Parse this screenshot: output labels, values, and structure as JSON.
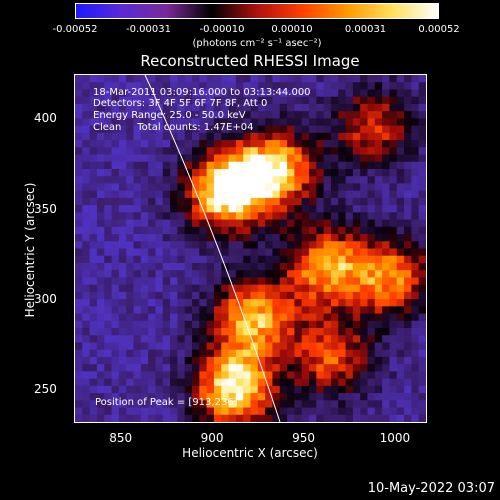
{
  "chart_data": {
    "type": "heatmap",
    "title": "Reconstructed RHESSI Image",
    "xlabel": "Heliocentric X (arcsec)",
    "ylabel": "Heliocentric Y (arcsec)",
    "xlim": [
      825,
      1017
    ],
    "ylim": [
      232,
      424
    ],
    "x_ticks": [
      "850",
      "900",
      "950",
      "1000"
    ],
    "y_ticks": [
      "250",
      "300",
      "350",
      "400"
    ],
    "colorbar": {
      "tick_labels": [
        "-0.00052",
        "-0.00031",
        "-0.00010",
        "0.00010",
        "0.00031",
        "0.00052"
      ],
      "unit": "(photons cm⁻² s⁻¹ asec⁻²)",
      "range": [
        -0.00052,
        0.00052
      ],
      "colors": [
        "#1b1bff",
        "#5a2ad6",
        "#7a2a9a",
        "#000000",
        "#b01010",
        "#ff4000",
        "#ff9a00",
        "#ffe060",
        "#ffffff"
      ]
    },
    "annotations": [
      "18-Mar-2011 03:09:16.000 to 03:13:44.000",
      "Detectors: 3F 4F 5F 6F 7F 8F, Att 0",
      "Energy Range: 25.0 - 50.0 keV",
      "Clean     Total counts: 1.47E+04"
    ],
    "peak_label": "Position of Peak = [913,236]",
    "peak_position": [
      913,
      236
    ],
    "sources": [
      {
        "x": 907,
        "y": 360,
        "peak": 1.0
      },
      {
        "x": 935,
        "y": 372,
        "peak": 0.85
      },
      {
        "x": 962,
        "y": 318,
        "peak": 0.75
      },
      {
        "x": 998,
        "y": 312,
        "peak": 0.7
      },
      {
        "x": 922,
        "y": 290,
        "peak": 0.8
      },
      {
        "x": 912,
        "y": 250,
        "peak": 0.95
      },
      {
        "x": 988,
        "y": 395,
        "peak": 0.55
      },
      {
        "x": 965,
        "y": 268,
        "peak": 0.6
      }
    ]
  },
  "footer": {
    "timestamp": "10-May-2022 03:07"
  }
}
